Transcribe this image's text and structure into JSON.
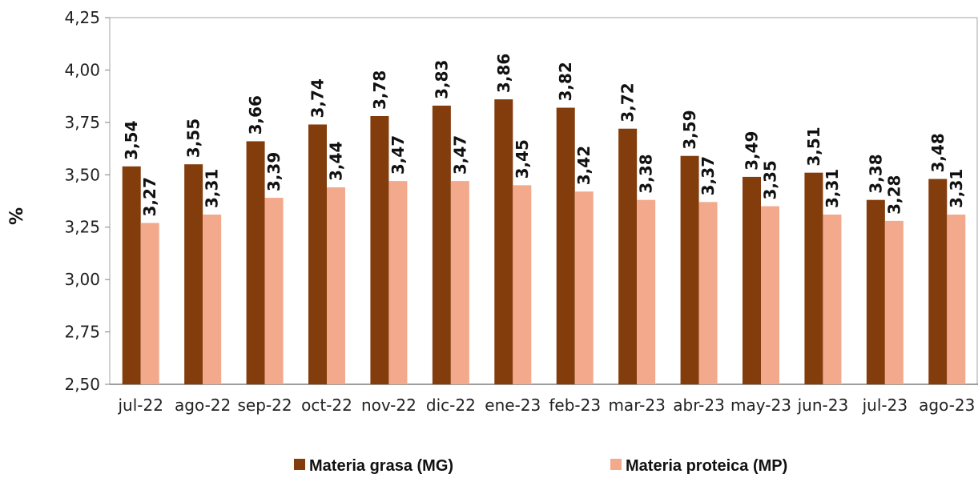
{
  "chart_data": {
    "type": "bar",
    "ylabel": "%",
    "ylim": [
      2.5,
      4.25
    ],
    "yticks": [
      2.5,
      2.75,
      3.0,
      3.25,
      3.5,
      3.75,
      4.0,
      4.25
    ],
    "ytick_labels": [
      "2,50",
      "2,75",
      "3,00",
      "3,25",
      "3,50",
      "3,75",
      "4,00",
      "4,25"
    ],
    "categories": [
      "jul-22",
      "ago-22",
      "sep-22",
      "oct-22",
      "nov-22",
      "dic-22",
      "ene-23",
      "feb-23",
      "mar-23",
      "abr-23",
      "may-23",
      "jun-23",
      "jul-23",
      "ago-23"
    ],
    "series": [
      {
        "name": "Materia grasa (MG)",
        "color": "#833C0C",
        "values": [
          3.54,
          3.55,
          3.66,
          3.74,
          3.78,
          3.83,
          3.86,
          3.82,
          3.72,
          3.59,
          3.49,
          3.51,
          3.38,
          3.48
        ],
        "labels": [
          "3,54",
          "3,55",
          "3,66",
          "3,74",
          "3,78",
          "3,83",
          "3,86",
          "3,82",
          "3,72",
          "3,59",
          "3,49",
          "3,51",
          "3,38",
          "3,48"
        ]
      },
      {
        "name": "Materia proteica (MP)",
        "color": "#F2A98C",
        "values": [
          3.27,
          3.31,
          3.39,
          3.44,
          3.47,
          3.47,
          3.45,
          3.42,
          3.38,
          3.37,
          3.35,
          3.31,
          3.28,
          3.31
        ],
        "labels": [
          "3,27",
          "3,31",
          "3,39",
          "3,44",
          "3,47",
          "3,47",
          "3,45",
          "3,42",
          "3,38",
          "3,37",
          "3,35",
          "3,31",
          "3,28",
          "3,31"
        ]
      }
    ],
    "grid": false,
    "legend": "bottom"
  }
}
